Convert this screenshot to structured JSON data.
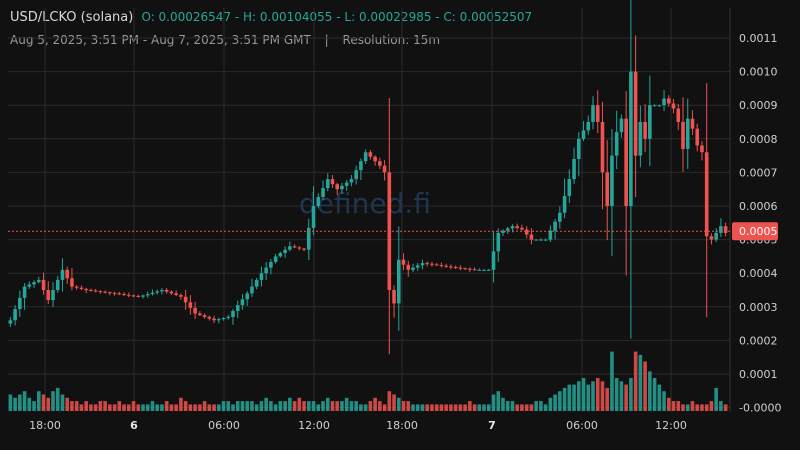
{
  "header": {
    "pair": "USD/LCKO (solana)",
    "ohlc": "O: 0.00026547 - H: 0.00104055 - L: 0.00022985 - C: 0.00052507",
    "range": "Aug 5, 2025, 3:51 PM - Aug 7, 2025, 3:51 PM GMT",
    "separator": "|",
    "resolution": "Resolution: 15m"
  },
  "watermark": "defined.fi",
  "colors": {
    "up": "#26a69a",
    "down": "#ef5350",
    "background": "#111111",
    "grid": "#2a2a2a",
    "last_price_tag": "#ef5350"
  },
  "chart_data": {
    "type": "candlestick",
    "x_tick_labels": [
      "18:00",
      "6",
      "06:00",
      "12:00",
      "18:00",
      "7",
      "06:00",
      "12:00"
    ],
    "y_tick_labels": [
      "0.0011",
      "0.0010",
      "0.0009",
      "0.0008",
      "0.0007",
      "0.0006",
      "0.0005",
      "0.0004",
      "0.0003",
      "0.0002",
      "0.0001",
      "-0.0000"
    ],
    "ylim": [
      0,
      0.00115
    ],
    "last_price": 0.000525,
    "last_price_label": "0.0005",
    "anchors": [
      [
        0,
        0.00026
      ],
      [
        3,
        0.00036
      ],
      [
        6,
        0.00038
      ],
      [
        8,
        0.00032
      ],
      [
        11,
        0.00041
      ],
      [
        13,
        0.00036
      ],
      [
        16,
        0.00035
      ],
      [
        22,
        0.00034
      ],
      [
        27,
        0.00033
      ],
      [
        32,
        0.00035
      ],
      [
        36,
        0.00033
      ],
      [
        39,
        0.00028
      ],
      [
        43,
        0.00026
      ],
      [
        46,
        0.00027
      ],
      [
        50,
        0.00034
      ],
      [
        53,
        0.0004
      ],
      [
        56,
        0.00045
      ],
      [
        59,
        0.00048
      ],
      [
        62,
        0.00047
      ],
      [
        64,
        0.0006
      ],
      [
        67,
        0.00068
      ],
      [
        69,
        0.00065
      ],
      [
        72,
        0.00068
      ],
      [
        75,
        0.00076
      ],
      [
        78,
        0.00072
      ],
      [
        79,
        0.0007
      ],
      [
        80,
        0.00035
      ],
      [
        81,
        0.00031
      ],
      [
        82,
        0.00044
      ],
      [
        84,
        0.00041
      ],
      [
        87,
        0.00043
      ],
      [
        92,
        0.00042
      ],
      [
        98,
        0.00041
      ],
      [
        101,
        0.00041
      ],
      [
        103,
        0.00052
      ],
      [
        106,
        0.00054
      ],
      [
        108,
        0.00053
      ],
      [
        110,
        0.0005
      ],
      [
        113,
        0.0005
      ],
      [
        116,
        0.00058
      ],
      [
        118,
        0.00068
      ],
      [
        120,
        0.0008
      ],
      [
        122,
        0.00085
      ],
      [
        123,
        0.0009
      ],
      [
        124,
        0.00085
      ],
      [
        125,
        0.0007
      ],
      [
        126,
        0.0006
      ],
      [
        127,
        0.00075
      ],
      [
        128,
        0.00082
      ],
      [
        129,
        0.00086
      ],
      [
        130,
        0.0006
      ],
      [
        131,
        0.001
      ],
      [
        132,
        0.00075
      ],
      [
        133,
        0.00085
      ],
      [
        134,
        0.0008
      ],
      [
        135,
        0.0009
      ],
      [
        137,
        0.0009
      ],
      [
        138,
        0.00092
      ],
      [
        140,
        0.00089
      ],
      [
        141,
        0.00085
      ],
      [
        142,
        0.00077
      ],
      [
        143,
        0.00086
      ],
      [
        144,
        0.00083
      ],
      [
        145,
        0.00078
      ],
      [
        146,
        0.00076
      ],
      [
        147,
        0.00051
      ],
      [
        148,
        0.0005
      ],
      [
        150,
        0.00054
      ],
      [
        151,
        0.00052
      ]
    ],
    "volume_hint": [
      0.05,
      0.04,
      0.05,
      0.06,
      0.04,
      0.03,
      0.06,
      0.05,
      0.04,
      0.06,
      0.07,
      0.05,
      0.04,
      0.03,
      0.03,
      0.02,
      0.03,
      0.02,
      0.02,
      0.03,
      0.03,
      0.02,
      0.02,
      0.03,
      0.02,
      0.02,
      0.03,
      0.02,
      0.02,
      0.02,
      0.03,
      0.02,
      0.02,
      0.03,
      0.02,
      0.02,
      0.04,
      0.03,
      0.02,
      0.02,
      0.02,
      0.03,
      0.02,
      0.02,
      0.02,
      0.03,
      0.03,
      0.02,
      0.03,
      0.03,
      0.03,
      0.03,
      0.02,
      0.03,
      0.04,
      0.03,
      0.02,
      0.03,
      0.03,
      0.04,
      0.03,
      0.04,
      0.03,
      0.03,
      0.03,
      0.02,
      0.03,
      0.04,
      0.03,
      0.03,
      0.03,
      0.04,
      0.03,
      0.03,
      0.02,
      0.02,
      0.03,
      0.04,
      0.03,
      0.02,
      0.06,
      0.05,
      0.04,
      0.03,
      0.03,
      0.02,
      0.02,
      0.02,
      0.02,
      0.02,
      0.02,
      0.02,
      0.02,
      0.02,
      0.02,
      0.02,
      0.02,
      0.03,
      0.02,
      0.02,
      0.02,
      0.02,
      0.05,
      0.06,
      0.04,
      0.03,
      0.03,
      0.02,
      0.02,
      0.02,
      0.02,
      0.03,
      0.03,
      0.02,
      0.04,
      0.05,
      0.06,
      0.07,
      0.08,
      0.08,
      0.09,
      0.1,
      0.08,
      0.09,
      0.1,
      0.09,
      0.07,
      0.18,
      0.1,
      0.09,
      0.08,
      0.1,
      0.18,
      0.17,
      0.15,
      0.12,
      0.1,
      0.08,
      0.06,
      0.04,
      0.03,
      0.03,
      0.02,
      0.02,
      0.03,
      0.02,
      0.02,
      0.02,
      0.03,
      0.07,
      0.03,
      0.02,
      0.02
    ]
  }
}
